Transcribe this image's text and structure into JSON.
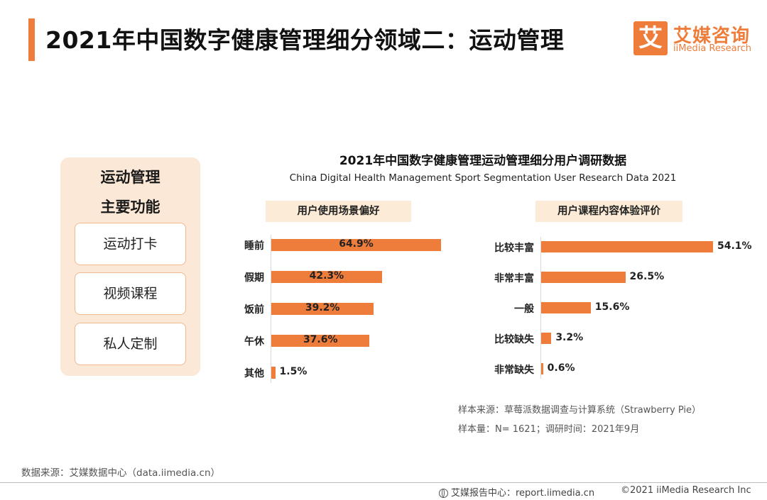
{
  "header": {
    "title": "2021年中国数字健康管理细分领域二：运动管理",
    "brand_mark": "艾",
    "brand_name_cn": "艾媒咨询",
    "brand_name_en": "iiMedia Research"
  },
  "functions_panel": {
    "title_line1": "运动管理",
    "title_line2": "主要功能",
    "items": [
      "运动打卡",
      "视频课程",
      "私人定制"
    ]
  },
  "chart_header": {
    "title": "2021年中国数字健康管理运动管理细分用户调研数据",
    "subtitle": "China Digital Health Management Sport Segmentation User Research Data 2021"
  },
  "chart_data": [
    {
      "type": "bar",
      "orientation": "horizontal",
      "title": "用户使用场景偏好",
      "categories": [
        "睡前",
        "假期",
        "饭前",
        "午休",
        "其他"
      ],
      "values": [
        64.9,
        42.3,
        39.2,
        37.6,
        1.5
      ],
      "labels": [
        "64.9%",
        "42.3%",
        "39.2%",
        "37.6%",
        "1.5%"
      ],
      "unit": "%",
      "bar_color": "#ee7d3c"
    },
    {
      "type": "bar",
      "orientation": "horizontal",
      "title": "用户课程内容体验评价",
      "categories": [
        "比较丰富",
        "非常丰富",
        "一般",
        "比较缺失",
        "非常缺失"
      ],
      "values": [
        54.1,
        26.5,
        15.6,
        3.2,
        0.6
      ],
      "labels": [
        "54.1%",
        "26.5%",
        "15.6%",
        "3.2%",
        "0.6%"
      ],
      "unit": "%",
      "bar_color": "#ee7d3c"
    }
  ],
  "notes": {
    "sample_source": "样本来源：草莓派数据调查与计算系统（Strawberry Pie）",
    "sample_size": "样本量：N= 1621；调研时间：2021年9月"
  },
  "footer": {
    "data_source": "数据来源：艾媒数据中心（data.iimedia.cn）",
    "report_center": "艾媒报告中心：report.iimedia.cn",
    "copyright": "©2021  iiMedia Research  Inc"
  },
  "colors": {
    "accent": "#ee7d3c",
    "panel_bg": "#fbe8d7",
    "header_bg": "#fcebd6"
  }
}
